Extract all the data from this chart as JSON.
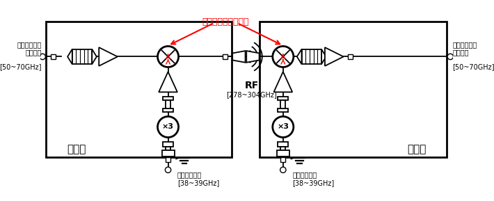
{
  "annotation_label": "開発したミキサ回路",
  "tx_label": "送信機",
  "rx_label": "受信機",
  "rf_label": "RF",
  "rf_freq": "[278~304GHz]",
  "if_label_left": "中間周波数帯\n変調信号",
  "if_freq_left": "[50~70GHz]",
  "if_label_right": "中間周波数帯\n変調信号",
  "if_freq_right": "[50~70GHz]",
  "lo_label_left": "ローカル信号",
  "lo_freq_left": "[38~39GHz]",
  "lo_label_right": "ローカル信号",
  "lo_freq_right": "[38~39GHz]",
  "x3_label": "×3",
  "fig_w": 7.1,
  "fig_h": 2.89,
  "dpi": 100
}
